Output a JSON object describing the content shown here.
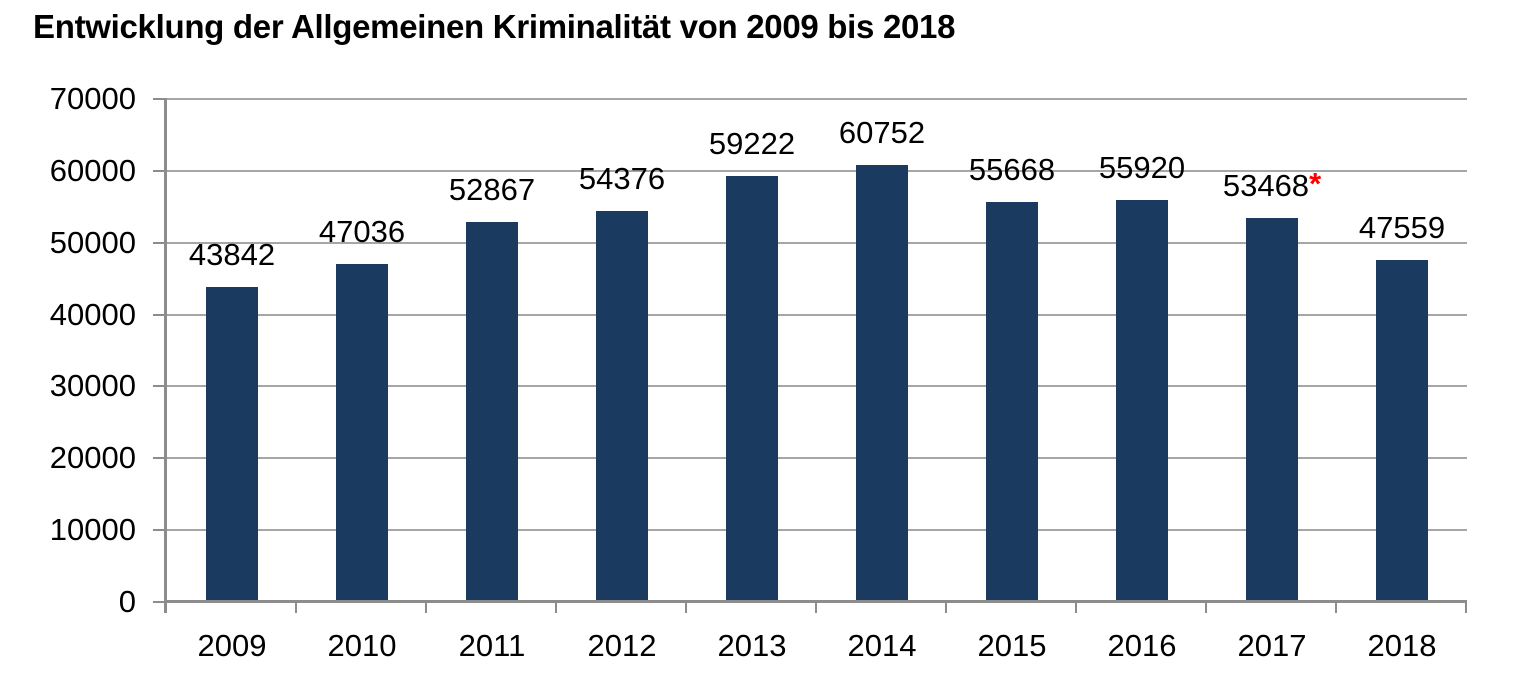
{
  "chart_data": {
    "type": "bar",
    "title": "Entwicklung der Allgemeinen Kriminalität von 2009 bis 2018",
    "categories": [
      "2009",
      "2010",
      "2011",
      "2012",
      "2013",
      "2014",
      "2015",
      "2016",
      "2017",
      "2018"
    ],
    "values": [
      43842,
      47036,
      52867,
      54376,
      59222,
      60752,
      55668,
      55920,
      53468,
      47559
    ],
    "value_labels": [
      "43842",
      "47036",
      "52867",
      "54376",
      "59222",
      "60752",
      "55668",
      "55920",
      "53468",
      "47559"
    ],
    "footnote": {
      "category": "2017",
      "index": 8,
      "symbol": "*",
      "color": "#FF0000"
    },
    "xlabel": "",
    "ylabel": "",
    "ylim": [
      0,
      70000
    ],
    "ytick_step": 10000,
    "yticks": [
      0,
      10000,
      20000,
      30000,
      40000,
      50000,
      60000,
      70000
    ],
    "grid": true,
    "legend": false,
    "colors": {
      "bar": "#1B3A5F",
      "gridline": "#A6A6A6",
      "axis": "#8C8C8C",
      "text": "#000000",
      "footnote": "#FF0000"
    }
  }
}
